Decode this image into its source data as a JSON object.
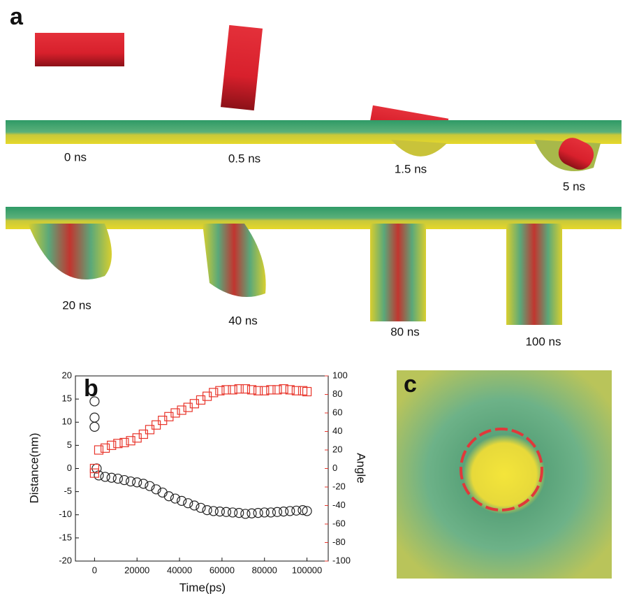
{
  "panel_labels": {
    "a": "a",
    "b": "b",
    "c": "c"
  },
  "time_labels": [
    "0 ns",
    "0.5 ns",
    "1.5 ns",
    "5 ns",
    "20 ns",
    "40 ns",
    "80 ns",
    "100 ns"
  ],
  "chart_data": {
    "type": "scatter",
    "x_label": "Time(ps)",
    "y_label": "Distance(nm)",
    "y2_label": "Angle",
    "xlim": [
      -9000,
      110000
    ],
    "xticks": [
      0,
      20000,
      40000,
      60000,
      80000,
      100000
    ],
    "ylim": [
      -20,
      20
    ],
    "yticks": [
      -20,
      -15,
      -10,
      -5,
      0,
      5,
      10,
      15,
      20
    ],
    "y2lim": [
      -100,
      100
    ],
    "y2ticks": [
      -100,
      -80,
      -60,
      -40,
      -20,
      0,
      20,
      40,
      60,
      80,
      100
    ],
    "y2_color": "#e8352b",
    "series": [
      {
        "marker": "circle",
        "color": "#222222",
        "x": [
          0,
          0,
          0,
          1000,
          2000,
          5000,
          8000,
          11000,
          14000,
          17000,
          20000,
          23000,
          26000,
          29000,
          32000,
          35000,
          38000,
          41000,
          44000,
          47000,
          50000,
          53000,
          56000,
          59000,
          62000,
          65000,
          68000,
          71000,
          74000,
          77000,
          80000,
          83000,
          86000,
          89000,
          92000,
          95000,
          98000,
          100000
        ],
        "values": [
          14.5,
          11,
          9,
          0,
          -1.5,
          -1.8,
          -2,
          -2.2,
          -2.5,
          -2.8,
          -3,
          -3.3,
          -3.8,
          -4.5,
          -5.2,
          -6,
          -6.5,
          -7,
          -7.5,
          -8,
          -8.5,
          -9,
          -9.2,
          -9.3,
          -9.4,
          -9.5,
          -9.6,
          -9.8,
          -9.7,
          -9.6,
          -9.5,
          -9.5,
          -9.4,
          -9.3,
          -9.2,
          -9.1,
          -9,
          -9.2
        ]
      },
      {
        "marker": "square",
        "color": "#e8352b",
        "axis": "y2",
        "x": [
          0,
          0,
          2000,
          5000,
          8000,
          11000,
          14000,
          17000,
          20000,
          23000,
          26000,
          29000,
          32000,
          35000,
          38000,
          41000,
          44000,
          47000,
          50000,
          53000,
          56000,
          59000,
          62000,
          65000,
          68000,
          71000,
          74000,
          77000,
          80000,
          83000,
          86000,
          89000,
          92000,
          95000,
          98000,
          100000
        ],
        "values": [
          -5,
          0,
          20,
          22,
          25,
          27,
          28,
          30,
          33,
          37,
          42,
          47,
          52,
          56,
          60,
          63,
          66,
          70,
          74,
          78,
          82,
          84,
          85,
          85,
          86,
          86,
          85,
          84,
          84,
          85,
          85,
          86,
          85,
          84,
          84,
          83
        ]
      }
    ]
  }
}
